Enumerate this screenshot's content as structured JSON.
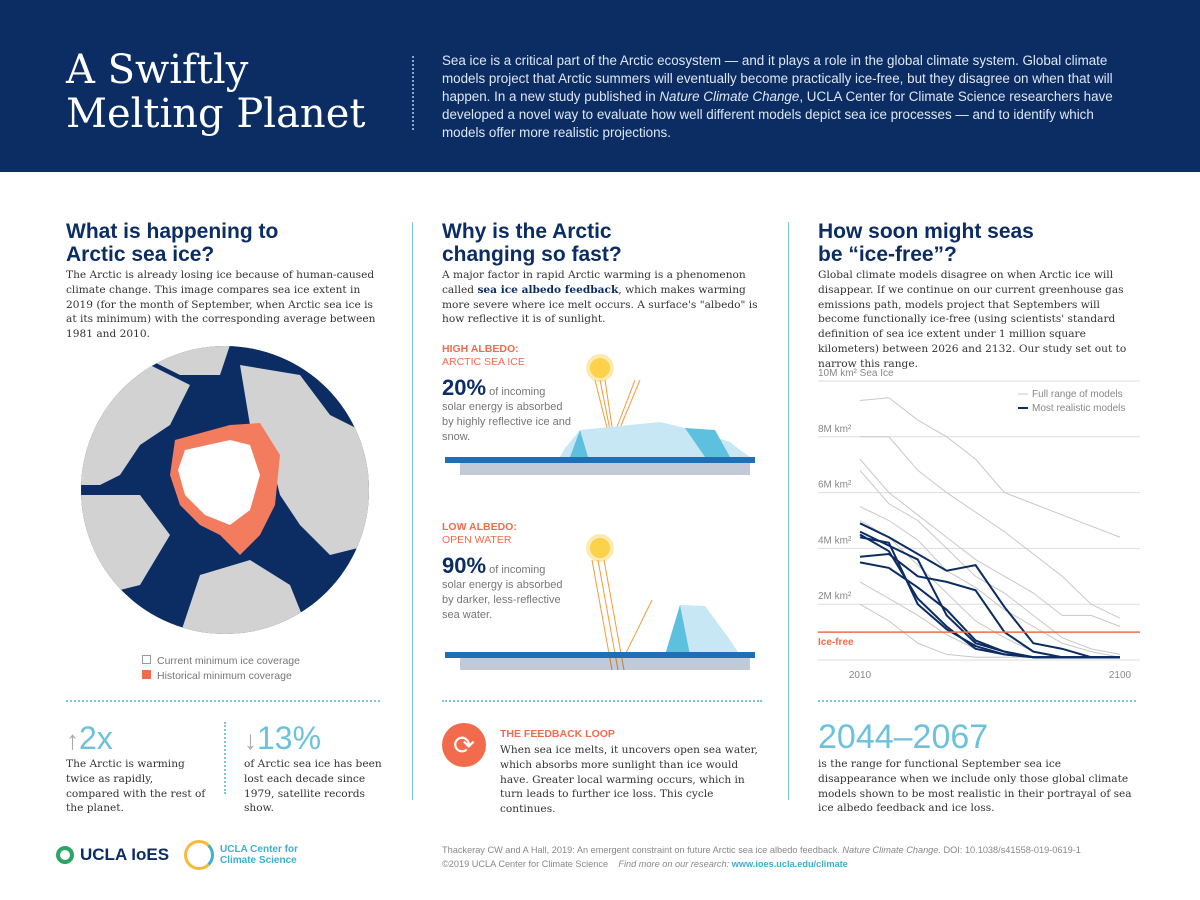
{
  "header": {
    "title": "A Swiftly Melting Planet",
    "intro_1": "Sea ice is a critical part of the Arctic ecosystem — and it plays a role in the global climate system. Global climate models project that Arctic summers will eventually become practically ice-free, but they disagree on when that will happen. In a new study published in ",
    "intro_journal": "Nature Climate Change",
    "intro_2": ", UCLA Center for Climate Science researchers have developed a novel way to evaluate how well different models depict sea ice processes — and to identify which models offer more realistic projections."
  },
  "col1": {
    "heading": "What is happening to Arctic sea ice?",
    "body": "The Arctic is already losing ice because of human-caused climate change. This image compares sea ice extent in 2019 (for the month of September, when Arctic sea ice is at its minimum) with the corresponding average between 1981 and 2010.",
    "legend": [
      "Current minimum ice coverage",
      "Historical minimum coverage"
    ],
    "stat1": {
      "value": "2x",
      "text": "The Arctic is warming twice as rapidly, compared with the rest of the planet."
    },
    "stat2": {
      "value": "13%",
      "text": "of Arctic sea ice has been lost each decade since 1979, satellite records show."
    }
  },
  "col2": {
    "heading": "Why is the Arctic changing so fast?",
    "body_1": "A major factor in rapid Arctic warming is a phenomenon called ",
    "body_term": "sea ice albedo feedback",
    "body_2": ", which makes warming more severe where ice melt occurs. A surface's \"albedo\" is how reflective it is of sunlight.",
    "high": {
      "label": "HIGH ALBEDO:",
      "sub": "ARCTIC SEA ICE",
      "pct": "20%",
      "text": "of incoming solar energy is absorbed by highly reflective ice and snow."
    },
    "low": {
      "label": "LOW ALBEDO:",
      "sub": "OPEN WATER",
      "pct": "90%",
      "text": "of incoming solar energy is absorbed by darker, less-reflective sea water."
    },
    "loop": {
      "title": "THE FEEDBACK LOOP",
      "text": "When sea ice melts, it uncovers open sea water, which absorbs more sunlight than ice would have. Greater local warming occurs, which in turn leads to further ice loss. This cycle continues."
    }
  },
  "col3": {
    "heading": "How soon might seas be “ice-free”?",
    "body": "Global climate models disagree on when Arctic ice will disappear. If we continue on our current greenhouse gas emissions path, models project that Septembers will become functionally ice-free (using scientists' standard definition of sea ice extent under 1 million square kilometers) between 2026 and 2132. Our study set out to narrow this range.",
    "range": "2044–2067",
    "range_text": "is the range for functional September sea ice disappearance when we include only those global climate models shown to be most realistic in their portrayal of sea ice albedo feedback and ice loss."
  },
  "chart_data": {
    "type": "line",
    "ylabel": "Sea Ice",
    "yticks": [
      "10M km²",
      "8M km²",
      "6M km²",
      "4M km²",
      "2M km²"
    ],
    "ytick_values": [
      10,
      8,
      6,
      4,
      2
    ],
    "xticks": [
      "2010",
      "2100"
    ],
    "xlim": [
      2010,
      2100
    ],
    "ylim": [
      0,
      10
    ],
    "threshold": {
      "label": "Ice-free",
      "value": 1
    },
    "legend": [
      "Full range of models",
      "Most realistic models"
    ],
    "legend_position": "top-right",
    "x": [
      2010,
      2020,
      2030,
      2040,
      2050,
      2060,
      2070,
      2080,
      2090,
      2100
    ],
    "series": [
      {
        "group": "full",
        "values": [
          9.3,
          9.4,
          8.6,
          8.0,
          7.2,
          6.0,
          5.6,
          5.2,
          4.8,
          4.4
        ]
      },
      {
        "group": "full",
        "values": [
          8.0,
          8.0,
          6.8,
          6.0,
          5.3,
          4.6,
          3.8,
          3.0,
          2.0,
          1.5
        ]
      },
      {
        "group": "full",
        "values": [
          7.2,
          6.0,
          5.2,
          4.4,
          3.6,
          3.0,
          2.4,
          1.6,
          1.6,
          1.2
        ]
      },
      {
        "group": "full",
        "values": [
          6.8,
          5.6,
          5.0,
          4.0,
          3.0,
          2.4,
          1.6,
          0.8,
          0.4,
          0.2
        ]
      },
      {
        "group": "full",
        "values": [
          5.5,
          5.0,
          4.3,
          3.2,
          2.6,
          1.8,
          1.2,
          0.6,
          0.3,
          0.1
        ]
      },
      {
        "group": "full",
        "values": [
          5.0,
          4.4,
          3.4,
          2.4,
          1.4,
          0.8,
          0.3,
          0.1,
          0.1,
          0.1
        ]
      },
      {
        "group": "full",
        "values": [
          2.8,
          2.2,
          1.6,
          0.9,
          0.4,
          0.2,
          0.1,
          0.1,
          0.1,
          0.1
        ]
      },
      {
        "group": "full",
        "values": [
          2.0,
          1.4,
          0.6,
          0.2,
          0.1,
          0.1,
          0.1,
          0.1,
          0.1,
          0.1
        ]
      },
      {
        "group": "realistic",
        "values": [
          4.9,
          4.4,
          3.8,
          3.2,
          3.4,
          1.9,
          0.6,
          0.4,
          0.1,
          0.1
        ]
      },
      {
        "group": "realistic",
        "values": [
          4.6,
          4.1,
          3.6,
          1.6,
          0.6,
          0.3,
          0.1,
          0.1,
          0.1,
          0.1
        ]
      },
      {
        "group": "realistic",
        "values": [
          4.4,
          4.2,
          2.0,
          1.1,
          0.5,
          0.2,
          0.1,
          0.1,
          0.1,
          0.1
        ]
      },
      {
        "group": "realistic",
        "values": [
          3.7,
          3.8,
          3.0,
          2.8,
          2.5,
          1.0,
          0.3,
          0.1,
          0.1,
          0.1
        ]
      },
      {
        "group": "realistic",
        "values": [
          3.5,
          3.3,
          2.6,
          1.8,
          0.7,
          0.3,
          0.1,
          0.1,
          0.1,
          0.1
        ]
      },
      {
        "group": "realistic",
        "values": [
          4.5,
          3.9,
          2.2,
          1.2,
          0.4,
          0.2,
          0.1,
          0.1,
          0.1,
          0.1
        ]
      }
    ]
  },
  "footer": {
    "citation_1": "Thackeray CW and A Hall, 2019: An emergent constraint on future Arctic sea ice albedo feedback. ",
    "citation_journal": "Nature Climate Change.",
    "citation_2": " DOI: 10.1038/s41558-019-0619-1",
    "copyright": "©2019 UCLA Center for Climate Science",
    "find": "Find more on our research:",
    "url": "www.ioes.ucla.edu/climate",
    "logo1": "UCLA IoES",
    "logo2": "UCLA Center for Climate Science"
  },
  "colors": {
    "navy": "#0b2d63",
    "orange": "#f26b4c",
    "teal": "#6cc2da",
    "gray_line": "#c8c8c8"
  }
}
